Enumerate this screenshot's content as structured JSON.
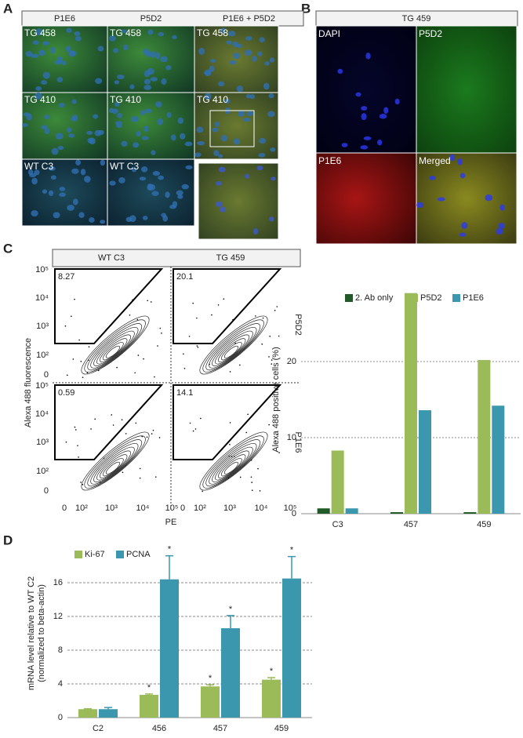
{
  "panel_letters": [
    "A",
    "B",
    "C",
    "D"
  ],
  "panel_a": {
    "columns": [
      "P1E6",
      "P5D2",
      "P1E6 + P5D2"
    ],
    "rows": [
      "TG 458",
      "TG 410",
      "WT C3"
    ]
  },
  "panel_b": {
    "title": "TG 459",
    "tiles": [
      "DAPI",
      "P5D2",
      "P1E6",
      "Merged"
    ]
  },
  "flow": {
    "columns": [
      "WT C3",
      "TG 459"
    ],
    "rows": [
      "P5D2",
      "P1E6"
    ],
    "gates": [
      [
        "8.27",
        "20.1"
      ],
      [
        "0.59",
        "14.1"
      ]
    ],
    "xlabel": "PE",
    "ylabel": "Alexa 488 fluorescence",
    "xtick_labels": [
      "0",
      "10²",
      "10³",
      "10⁴",
      "10⁵"
    ],
    "ytick_labels": [
      "10⁵",
      "10⁴",
      "10³",
      "10²",
      "0"
    ]
  },
  "chart_data": [
    {
      "type": "bar",
      "ylabel": "Alexa 488 positive cells (%)",
      "categories": [
        "C3",
        "457",
        "459"
      ],
      "series": [
        {
          "name": "2. Ab only",
          "color": "#1f5a28",
          "values": [
            0.7,
            0.2,
            0.2
          ]
        },
        {
          "name": "P5D2",
          "color": "#9bbb59",
          "values": [
            8.3,
            29.0,
            20.2
          ]
        },
        {
          "name": "P1E6",
          "color": "#3a97ad",
          "values": [
            0.7,
            13.6,
            14.2
          ]
        }
      ],
      "ylim": [
        0,
        30
      ],
      "yticks": [
        0,
        10,
        20
      ],
      "grid": true
    },
    {
      "type": "bar",
      "ylabel": [
        "mRNA level relative to WT C2",
        "(normalized to beta-actin)"
      ],
      "categories": [
        "C2",
        "456",
        "457",
        "459"
      ],
      "series": [
        {
          "name": "Ki-67",
          "color": "#9bbb59",
          "values": [
            1.0,
            2.7,
            3.7,
            4.5
          ],
          "errors": [
            0.05,
            0.1,
            0.2,
            0.25
          ],
          "markers": [
            null,
            "*",
            "*",
            "*"
          ]
        },
        {
          "name": "PCNA",
          "color": "#3a97ad",
          "values": [
            1.0,
            16.4,
            10.6,
            16.5
          ],
          "errors": [
            0.2,
            2.8,
            1.5,
            2.6
          ],
          "markers": [
            null,
            "*",
            "*",
            "*"
          ]
        }
      ],
      "ylim": [
        0,
        20
      ],
      "yticks": [
        0,
        4,
        8,
        12,
        16
      ],
      "grid": true
    }
  ]
}
